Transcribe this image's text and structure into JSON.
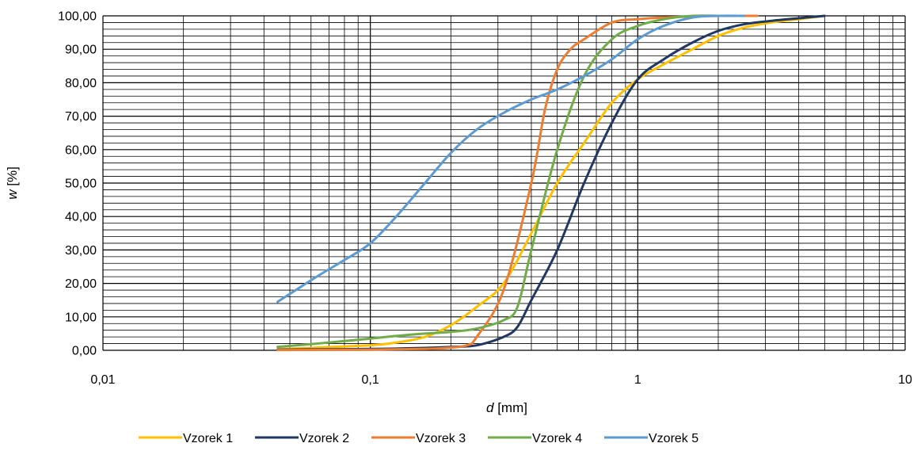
{
  "chart_data": {
    "type": "line",
    "x_scale": "log",
    "xlim": [
      0.01,
      10
    ],
    "ylim": [
      0,
      100
    ],
    "x_ticks": [
      "0,01",
      "0,1",
      "1",
      "10"
    ],
    "y_ticks": [
      "0,00",
      "10,00",
      "20,00",
      "30,00",
      "40,00",
      "50,00",
      "60,00",
      "70,00",
      "80,00",
      "90,00",
      "100,00"
    ],
    "xlabel_var": "d",
    "xlabel_unit": "[mm]",
    "ylabel_var": "w",
    "ylabel_unit": "[%]",
    "grid": true,
    "legend_position": "bottom",
    "series": [
      {
        "name": "Vzorek 1",
        "color": "#FFC000",
        "points": [
          [
            0.045,
            0.3
          ],
          [
            0.063,
            0.8
          ],
          [
            0.1,
            1.5
          ],
          [
            0.125,
            2.3
          ],
          [
            0.16,
            4.0
          ],
          [
            0.2,
            7.5
          ],
          [
            0.25,
            13.0
          ],
          [
            0.315,
            20.0
          ],
          [
            0.4,
            35.0
          ],
          [
            0.5,
            50.0
          ],
          [
            0.63,
            62.0
          ],
          [
            0.8,
            74.0
          ],
          [
            1.0,
            81.0
          ],
          [
            1.25,
            85.5
          ],
          [
            1.6,
            90.0
          ],
          [
            2.0,
            94.0
          ],
          [
            2.5,
            96.5
          ],
          [
            3.15,
            98.0
          ],
          [
            4.0,
            99.0
          ],
          [
            5.0,
            100.0
          ]
        ]
      },
      {
        "name": "Vzorek 2",
        "color": "#203864",
        "points": [
          [
            0.045,
            0.2
          ],
          [
            0.063,
            0.3
          ],
          [
            0.1,
            0.4
          ],
          [
            0.16,
            0.7
          ],
          [
            0.2,
            1.0
          ],
          [
            0.25,
            1.5
          ],
          [
            0.315,
            4.0
          ],
          [
            0.355,
            7.0
          ],
          [
            0.4,
            15.0
          ],
          [
            0.5,
            30.0
          ],
          [
            0.63,
            50.0
          ],
          [
            0.8,
            68.0
          ],
          [
            1.0,
            81.0
          ],
          [
            1.25,
            87.0
          ],
          [
            1.6,
            92.0
          ],
          [
            2.0,
            95.5
          ],
          [
            2.5,
            97.5
          ],
          [
            3.15,
            98.5
          ],
          [
            4.0,
            99.3
          ],
          [
            5.0,
            100.0
          ]
        ]
      },
      {
        "name": "Vzorek 3",
        "color": "#ED7D31",
        "points": [
          [
            0.045,
            0.1
          ],
          [
            0.1,
            0.2
          ],
          [
            0.16,
            0.4
          ],
          [
            0.2,
            0.8
          ],
          [
            0.23,
            1.5
          ],
          [
            0.25,
            4.0
          ],
          [
            0.315,
            18.0
          ],
          [
            0.4,
            50.0
          ],
          [
            0.45,
            72.0
          ],
          [
            0.5,
            84.0
          ],
          [
            0.56,
            90.0
          ],
          [
            0.63,
            93.0
          ],
          [
            0.8,
            98.0
          ],
          [
            1.0,
            99.0
          ],
          [
            1.25,
            99.5
          ],
          [
            1.6,
            99.8
          ],
          [
            2.0,
            100.0
          ],
          [
            2.8,
            100.0
          ]
        ]
      },
      {
        "name": "Vzorek 4",
        "color": "#70AD47",
        "points": [
          [
            0.045,
            1.0
          ],
          [
            0.063,
            2.0
          ],
          [
            0.1,
            3.5
          ],
          [
            0.125,
            4.3
          ],
          [
            0.16,
            5.0
          ],
          [
            0.2,
            5.5
          ],
          [
            0.25,
            6.5
          ],
          [
            0.315,
            9.0
          ],
          [
            0.355,
            13.0
          ],
          [
            0.4,
            30.0
          ],
          [
            0.5,
            60.0
          ],
          [
            0.63,
            82.0
          ],
          [
            0.8,
            93.0
          ],
          [
            1.0,
            97.0
          ],
          [
            1.25,
            99.0
          ],
          [
            1.6,
            100.0
          ],
          [
            2.0,
            100.0
          ]
        ]
      },
      {
        "name": "Vzorek 5",
        "color": "#5B9BD5",
        "points": [
          [
            0.045,
            14.5
          ],
          [
            0.063,
            22.0
          ],
          [
            0.08,
            27.0
          ],
          [
            0.1,
            32.0
          ],
          [
            0.125,
            40.0
          ],
          [
            0.16,
            50.0
          ],
          [
            0.2,
            59.0
          ],
          [
            0.25,
            66.0
          ],
          [
            0.315,
            71.0
          ],
          [
            0.4,
            75.0
          ],
          [
            0.5,
            78.0
          ],
          [
            0.63,
            82.0
          ],
          [
            0.8,
            87.0
          ],
          [
            1.0,
            93.0
          ],
          [
            1.25,
            97.0
          ],
          [
            1.6,
            99.5
          ],
          [
            2.0,
            100.0
          ],
          [
            2.5,
            100.0
          ]
        ]
      }
    ]
  }
}
